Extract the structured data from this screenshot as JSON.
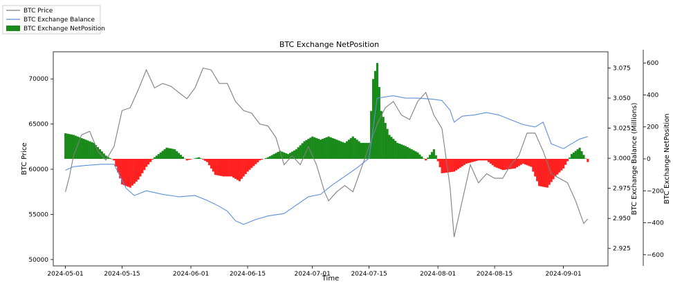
{
  "chart_data": {
    "type": "line",
    "title": "BTC Exchange NetPosition",
    "xlabel": "Time",
    "ylabel_left": "BTC Price",
    "ylabel_right1": "BTC Exchange Balance (Millions)",
    "ylabel_right2": "BTC Exchange NetPosition",
    "x_ticks": [
      "2024-05-01",
      "2024-05-15",
      "2024-06-01",
      "2024-06-15",
      "2024-07-01",
      "2024-07-15",
      "2024-08-01",
      "2024-08-15",
      "2024-09-01"
    ],
    "xlim": [
      "2024-04-28",
      "2024-09-12"
    ],
    "y_left_ticks": [
      50000,
      55000,
      60000,
      65000,
      70000
    ],
    "y_left_lim": [
      49300,
      73000
    ],
    "y_right1_ticks": [
      2.925,
      2.95,
      2.975,
      3.0,
      3.025,
      3.05,
      3.075
    ],
    "y_right1_lim": [
      2.9105,
      3.0885
    ],
    "y_right2_ticks": [
      -600,
      -400,
      -200,
      0,
      200,
      400,
      600
    ],
    "y_right2_lim": [
      -670,
      670
    ],
    "legend_position": "top-left-outside",
    "colors": {
      "price": "#7f7f7f",
      "balance": "#5b8fd9",
      "positive": "#1a8a1a",
      "negative": "#ff2020"
    },
    "series": [
      {
        "name": "BTC Price",
        "x": [
          "2024-05-01",
          "2024-05-02",
          "2024-05-03",
          "2024-05-05",
          "2024-05-07",
          "2024-05-09",
          "2024-05-11",
          "2024-05-13",
          "2024-05-15",
          "2024-05-17",
          "2024-05-19",
          "2024-05-21",
          "2024-05-23",
          "2024-05-25",
          "2024-05-27",
          "2024-05-29",
          "2024-05-31",
          "2024-06-02",
          "2024-06-04",
          "2024-06-06",
          "2024-06-08",
          "2024-06-10",
          "2024-06-12",
          "2024-06-14",
          "2024-06-16",
          "2024-06-18",
          "2024-06-20",
          "2024-06-22",
          "2024-06-24",
          "2024-06-26",
          "2024-06-28",
          "2024-06-30",
          "2024-07-02",
          "2024-07-04",
          "2024-07-05",
          "2024-07-07",
          "2024-07-09",
          "2024-07-11",
          "2024-07-13",
          "2024-07-15",
          "2024-07-17",
          "2024-07-19",
          "2024-07-21",
          "2024-07-23",
          "2024-07-25",
          "2024-07-27",
          "2024-07-29",
          "2024-07-31",
          "2024-08-02",
          "2024-08-04",
          "2024-08-05",
          "2024-08-07",
          "2024-08-09",
          "2024-08-11",
          "2024-08-13",
          "2024-08-15",
          "2024-08-17",
          "2024-08-19",
          "2024-08-21",
          "2024-08-23",
          "2024-08-25",
          "2024-08-27",
          "2024-08-29",
          "2024-08-31",
          "2024-09-02",
          "2024-09-04",
          "2024-09-06",
          "2024-09-07"
        ],
        "values": [
          57500,
          59200,
          61500,
          63800,
          64200,
          62000,
          61000,
          62500,
          66500,
          66800,
          68800,
          71000,
          69000,
          69500,
          69200,
          68500,
          67800,
          69000,
          71200,
          71000,
          69500,
          69500,
          67500,
          66500,
          66200,
          65000,
          64800,
          63500,
          60500,
          61500,
          60500,
          62500,
          60500,
          57500,
          56500,
          57500,
          58200,
          57500,
          60000,
          62500,
          65000,
          66800,
          67500,
          66000,
          65500,
          67500,
          68500,
          66000,
          64500,
          58000,
          52500,
          56500,
          60500,
          58500,
          59500,
          59000,
          59000,
          60500,
          61500,
          64000,
          64000,
          62000,
          59500,
          59000,
          58500,
          56500,
          54000,
          54500
        ]
      },
      {
        "name": "BTC Exchange Balance",
        "x": [
          "2024-05-01",
          "2024-05-03",
          "2024-05-06",
          "2024-05-10",
          "2024-05-13",
          "2024-05-16",
          "2024-05-18",
          "2024-05-21",
          "2024-05-25",
          "2024-05-29",
          "2024-06-02",
          "2024-06-05",
          "2024-06-08",
          "2024-06-10",
          "2024-06-12",
          "2024-06-14",
          "2024-06-17",
          "2024-06-20",
          "2024-06-24",
          "2024-06-27",
          "2024-06-30",
          "2024-07-03",
          "2024-07-06",
          "2024-07-09",
          "2024-07-12",
          "2024-07-15",
          "2024-07-17",
          "2024-07-21",
          "2024-07-24",
          "2024-07-27",
          "2024-07-31",
          "2024-08-02",
          "2024-08-04",
          "2024-08-05",
          "2024-08-07",
          "2024-08-10",
          "2024-08-13",
          "2024-08-16",
          "2024-08-19",
          "2024-08-22",
          "2024-08-25",
          "2024-08-27",
          "2024-08-29",
          "2024-09-01",
          "2024-09-03",
          "2024-09-05",
          "2024-09-07"
        ],
        "values": [
          2.99,
          2.993,
          2.994,
          2.995,
          2.995,
          2.975,
          2.969,
          2.973,
          2.97,
          2.968,
          2.969,
          2.965,
          2.96,
          2.956,
          2.948,
          2.945,
          2.949,
          2.952,
          2.954,
          2.961,
          2.968,
          2.97,
          2.978,
          2.985,
          2.992,
          3.0,
          3.05,
          3.052,
          3.05,
          3.05,
          3.049,
          3.048,
          3.04,
          3.03,
          3.035,
          3.036,
          3.038,
          3.036,
          3.032,
          3.028,
          3.026,
          3.03,
          3.012,
          3.008,
          3.012,
          3.016,
          3.018
        ]
      },
      {
        "name": "BTC Exchange NetPosition",
        "x": [
          "2024-05-01",
          "2024-05-03",
          "2024-05-05",
          "2024-05-08",
          "2024-05-11",
          "2024-05-13",
          "2024-05-15",
          "2024-05-17",
          "2024-05-19",
          "2024-05-21",
          "2024-05-23",
          "2024-05-26",
          "2024-05-28",
          "2024-05-31",
          "2024-06-03",
          "2024-06-05",
          "2024-06-07",
          "2024-06-09",
          "2024-06-11",
          "2024-06-13",
          "2024-06-15",
          "2024-06-18",
          "2024-06-20",
          "2024-06-23",
          "2024-06-25",
          "2024-06-27",
          "2024-06-29",
          "2024-07-01",
          "2024-07-03",
          "2024-07-05",
          "2024-07-07",
          "2024-07-09",
          "2024-07-11",
          "2024-07-13",
          "2024-07-15",
          "2024-07-16",
          "2024-07-17",
          "2024-07-18",
          "2024-07-20",
          "2024-07-22",
          "2024-07-24",
          "2024-07-27",
          "2024-07-29",
          "2024-07-31",
          "2024-08-02",
          "2024-08-05",
          "2024-08-08",
          "2024-08-11",
          "2024-08-13",
          "2024-08-15",
          "2024-08-17",
          "2024-08-20",
          "2024-08-22",
          "2024-08-24",
          "2024-08-26",
          "2024-08-28",
          "2024-08-30",
          "2024-09-01",
          "2024-09-03",
          "2024-09-05",
          "2024-09-07"
        ],
        "values": [
          160,
          150,
          130,
          100,
          20,
          -10,
          -160,
          -180,
          -130,
          -50,
          10,
          70,
          60,
          -10,
          10,
          -20,
          -100,
          -110,
          -110,
          -140,
          -80,
          -10,
          10,
          50,
          30,
          60,
          110,
          140,
          120,
          140,
          120,
          100,
          140,
          100,
          100,
          500,
          600,
          300,
          150,
          100,
          80,
          40,
          -10,
          60,
          -90,
          -80,
          -30,
          -10,
          -10,
          -50,
          -70,
          -60,
          -30,
          -50,
          -170,
          -180,
          -110,
          -60,
          30,
          70,
          -20
        ]
      }
    ]
  }
}
